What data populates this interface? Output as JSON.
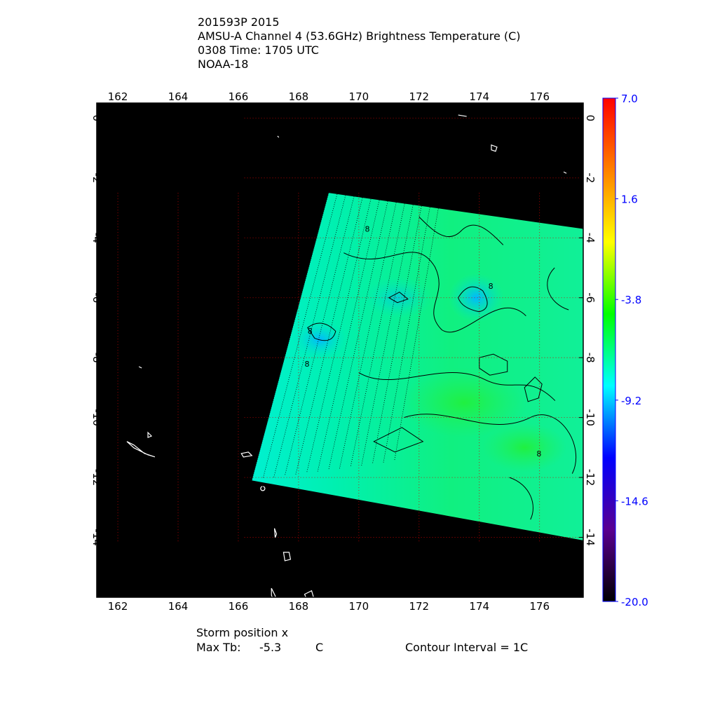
{
  "header": {
    "storm": "201593P 2015",
    "product": "AMSU-A Channel 4 (53.6GHz) Brightness Temperature (C)",
    "time": "0308 Time: 1705 UTC",
    "satellite": "NOAA-18"
  },
  "footer": {
    "storm_position": "Storm position x",
    "max_tb_label": "Max Tb:",
    "max_tb_value": "-5.3",
    "max_tb_unit": "C",
    "contour_interval": "Contour Interval = 1C"
  },
  "chart_data": {
    "type": "heatmap",
    "title": "AMSU-A Channel 4 (53.6GHz) Brightness Temperature (C)",
    "x_ticks": [
      "162",
      "164",
      "166",
      "168",
      "170",
      "172",
      "174",
      "176"
    ],
    "y_ticks": [
      "0",
      "-2",
      "-4",
      "-6",
      "-8",
      "-10",
      "-12",
      "-14"
    ],
    "xlim": [
      161.3,
      177.45
    ],
    "ylim": [
      -16.0,
      0.5
    ],
    "grid": true,
    "swath_corners_lonlat": [
      [
        169.0,
        -2.5
      ],
      [
        177.45,
        -3.7
      ],
      [
        177.45,
        -14.1
      ],
      [
        166.45,
        -12.1
      ]
    ],
    "colorbar": {
      "min": -20.0,
      "max": 7.0,
      "tick_labels": [
        "7.0",
        "1.6",
        "-3.8",
        "-9.2",
        "-14.6",
        "-20.0"
      ],
      "colors": [
        "#000000",
        "#5a0090",
        "#0000ff",
        "#00ffff",
        "#00ff00",
        "#ffff00",
        "#ff8000",
        "#ff0000"
      ],
      "label_color": "#0000ff"
    },
    "contour_labels": [
      "8",
      "8",
      "8",
      "8",
      "8"
    ],
    "background_color": "#000000",
    "coastline_color": "#ffffff"
  }
}
